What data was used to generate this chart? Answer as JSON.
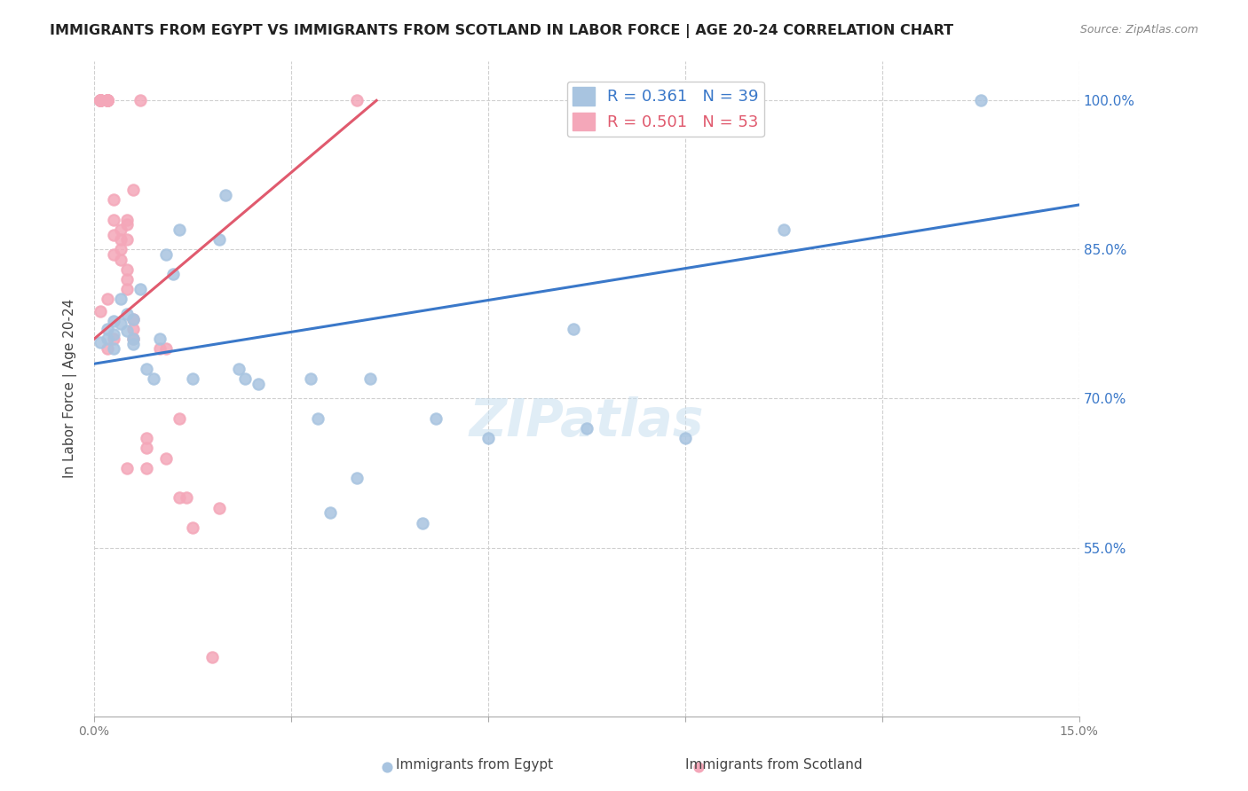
{
  "title": "IMMIGRANTS FROM EGYPT VS IMMIGRANTS FROM SCOTLAND IN LABOR FORCE | AGE 20-24 CORRELATION CHART",
  "source": "Source: ZipAtlas.com",
  "xlabel_bottom": "",
  "ylabel": "In Labor Force | Age 20-24",
  "x_min": 0.0,
  "x_max": 0.15,
  "y_min": 0.38,
  "y_max": 1.04,
  "x_ticks": [
    0.0,
    0.03,
    0.06,
    0.09,
    0.12,
    0.15
  ],
  "x_tick_labels": [
    "0.0%",
    "",
    "",
    "",
    "",
    "15.0%"
  ],
  "y_ticks": [
    0.55,
    0.7,
    0.85,
    1.0
  ],
  "y_tick_labels": [
    "55.0%",
    "70.0%",
    "85.0%",
    "100.0%"
  ],
  "egypt_color": "#a8c4e0",
  "scotland_color": "#f4a7b9",
  "egypt_line_color": "#3a78c9",
  "scotland_line_color": "#e05a6e",
  "legend_egypt_R": "0.361",
  "legend_egypt_N": "39",
  "legend_scotland_R": "0.501",
  "legend_scotland_N": "53",
  "watermark": "ZIPatlas",
  "egypt_x": [
    0.001,
    0.002,
    0.002,
    0.003,
    0.003,
    0.003,
    0.004,
    0.004,
    0.005,
    0.005,
    0.006,
    0.006,
    0.006,
    0.007,
    0.008,
    0.009,
    0.01,
    0.011,
    0.012,
    0.013,
    0.015,
    0.019,
    0.02,
    0.022,
    0.023,
    0.025,
    0.033,
    0.034,
    0.036,
    0.04,
    0.042,
    0.05,
    0.052,
    0.06,
    0.073,
    0.075,
    0.09,
    0.105,
    0.135
  ],
  "egypt_y": [
    0.757,
    0.77,
    0.76,
    0.778,
    0.765,
    0.75,
    0.8,
    0.775,
    0.785,
    0.768,
    0.78,
    0.76,
    0.755,
    0.81,
    0.73,
    0.72,
    0.76,
    0.845,
    0.825,
    0.87,
    0.72,
    0.86,
    0.905,
    0.73,
    0.72,
    0.715,
    0.72,
    0.68,
    0.585,
    0.62,
    0.72,
    0.575,
    0.68,
    0.66,
    0.77,
    0.67,
    0.66,
    0.87,
    1.0
  ],
  "scotland_x": [
    0.001,
    0.001,
    0.001,
    0.001,
    0.001,
    0.001,
    0.001,
    0.001,
    0.001,
    0.001,
    0.002,
    0.002,
    0.002,
    0.002,
    0.002,
    0.002,
    0.002,
    0.002,
    0.002,
    0.003,
    0.003,
    0.003,
    0.003,
    0.003,
    0.004,
    0.004,
    0.004,
    0.004,
    0.005,
    0.005,
    0.005,
    0.005,
    0.005,
    0.005,
    0.005,
    0.006,
    0.006,
    0.006,
    0.006,
    0.007,
    0.008,
    0.008,
    0.008,
    0.01,
    0.011,
    0.011,
    0.013,
    0.013,
    0.014,
    0.015,
    0.018,
    0.019,
    0.04
  ],
  "scotland_y": [
    1.0,
    1.0,
    1.0,
    1.0,
    1.0,
    1.0,
    1.0,
    1.0,
    1.0,
    0.788,
    1.0,
    1.0,
    1.0,
    1.0,
    1.0,
    1.0,
    1.0,
    0.8,
    0.75,
    0.9,
    0.88,
    0.865,
    0.845,
    0.76,
    0.87,
    0.86,
    0.85,
    0.84,
    0.88,
    0.875,
    0.86,
    0.83,
    0.82,
    0.81,
    0.63,
    0.91,
    0.78,
    0.77,
    0.76,
    1.0,
    0.66,
    0.65,
    0.63,
    0.75,
    0.75,
    0.64,
    0.68,
    0.6,
    0.6,
    0.57,
    0.44,
    0.59,
    1.0
  ],
  "egypt_trend_x": [
    0.0,
    0.15
  ],
  "egypt_trend_y": [
    0.735,
    0.895
  ],
  "scotland_trend_x": [
    0.0,
    0.043
  ],
  "scotland_trend_y": [
    0.76,
    1.0
  ],
  "grid_color": "#d0d0d0",
  "background_color": "#ffffff"
}
